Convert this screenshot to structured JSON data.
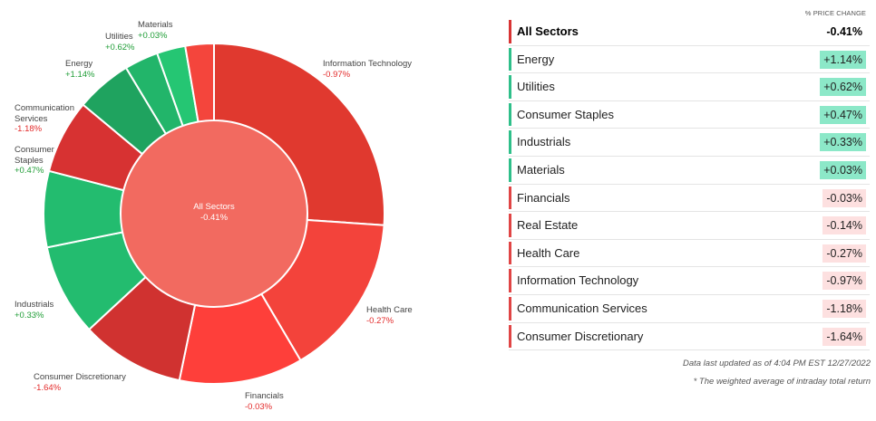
{
  "chart_data": {
    "type": "pie",
    "title": "",
    "center": {
      "name": "All Sectors",
      "value": "-0.41%"
    },
    "header": "% PRICE CHANGE",
    "sectors": [
      {
        "name": "Information Technology",
        "value": -0.97,
        "label": "-0.97%",
        "weight": 26.0,
        "color": "#e0392f",
        "label_lines": [
          "Information Technology"
        ]
      },
      {
        "name": "Health Care",
        "value": -0.27,
        "label": "-0.27%",
        "weight": 15.4,
        "color": "#f3433b",
        "label_lines": [
          "Health Care"
        ]
      },
      {
        "name": "Financials",
        "value": -0.03,
        "label": "-0.03%",
        "weight": 11.7,
        "color": "#fe3f3a",
        "label_lines": [
          "Financials"
        ]
      },
      {
        "name": "Consumer Discretionary",
        "value": -1.64,
        "label": "-1.64%",
        "weight": 9.8,
        "color": "#d03230",
        "label_lines": [
          "Consumer Discretionary"
        ]
      },
      {
        "name": "Industrials",
        "value": 0.33,
        "label": "+0.33%",
        "weight": 8.7,
        "color": "#23bc6f",
        "label_lines": [
          "Industrials"
        ]
      },
      {
        "name": "Consumer Staples",
        "value": 0.47,
        "label": "+0.47%",
        "weight": 7.2,
        "color": "#23bc6f",
        "label_lines": [
          "Consumer",
          "Staples"
        ]
      },
      {
        "name": "Communication Services",
        "value": -1.18,
        "label": "-1.18%",
        "weight": 7.0,
        "color": "#d73232",
        "label_lines": [
          "Communication",
          "Services"
        ]
      },
      {
        "name": "Energy",
        "value": 1.14,
        "label": "+1.14%",
        "weight": 5.3,
        "color": "#1fa35f",
        "label_lines": [
          "Energy"
        ]
      },
      {
        "name": "Utilities",
        "value": 0.62,
        "label": "+0.62%",
        "weight": 3.2,
        "color": "#22b56a",
        "label_lines": [
          "Utilities"
        ]
      },
      {
        "name": "Materials",
        "value": 0.03,
        "label": "+0.03%",
        "weight": 2.7,
        "color": "#25c673",
        "label_lines": [
          "Materials"
        ]
      },
      {
        "name": "Real Estate",
        "value": -0.14,
        "label": "-0.14%",
        "weight": 2.7,
        "color": "#f4453c",
        "label_lines": []
      }
    ]
  },
  "table": {
    "header": "% PRICE CHANGE",
    "rows": [
      {
        "name": "All Sectors",
        "value": "-0.41%",
        "dir": "neg",
        "all": true
      },
      {
        "name": "Energy",
        "value": "+1.14%",
        "dir": "pos"
      },
      {
        "name": "Utilities",
        "value": "+0.62%",
        "dir": "pos"
      },
      {
        "name": "Consumer Staples",
        "value": "+0.47%",
        "dir": "pos"
      },
      {
        "name": "Industrials",
        "value": "+0.33%",
        "dir": "pos"
      },
      {
        "name": "Materials",
        "value": "+0.03%",
        "dir": "pos"
      },
      {
        "name": "Financials",
        "value": "-0.03%",
        "dir": "neg"
      },
      {
        "name": "Real Estate",
        "value": "-0.14%",
        "dir": "neg"
      },
      {
        "name": "Health Care",
        "value": "-0.27%",
        "dir": "neg"
      },
      {
        "name": "Information Technology",
        "value": "-0.97%",
        "dir": "neg"
      },
      {
        "name": "Communication Services",
        "value": "-1.18%",
        "dir": "neg"
      },
      {
        "name": "Consumer Discretionary",
        "value": "-1.64%",
        "dir": "neg"
      }
    ],
    "footnote1": "Data last updated as of 4:04 PM EST 12/27/2022",
    "footnote2": "* The weighted average of intraday total return"
  },
  "colors": {
    "positive_text": "#1f9d36",
    "negative_text": "#e32b2b",
    "positive_bar": "#2fbf8a",
    "negative_bar": "#e04545",
    "all_bar": "#d83434",
    "positive_badge": "#8ce8c8",
    "negative_badge": "#fde0e0",
    "center_fill": "#f26a60"
  }
}
